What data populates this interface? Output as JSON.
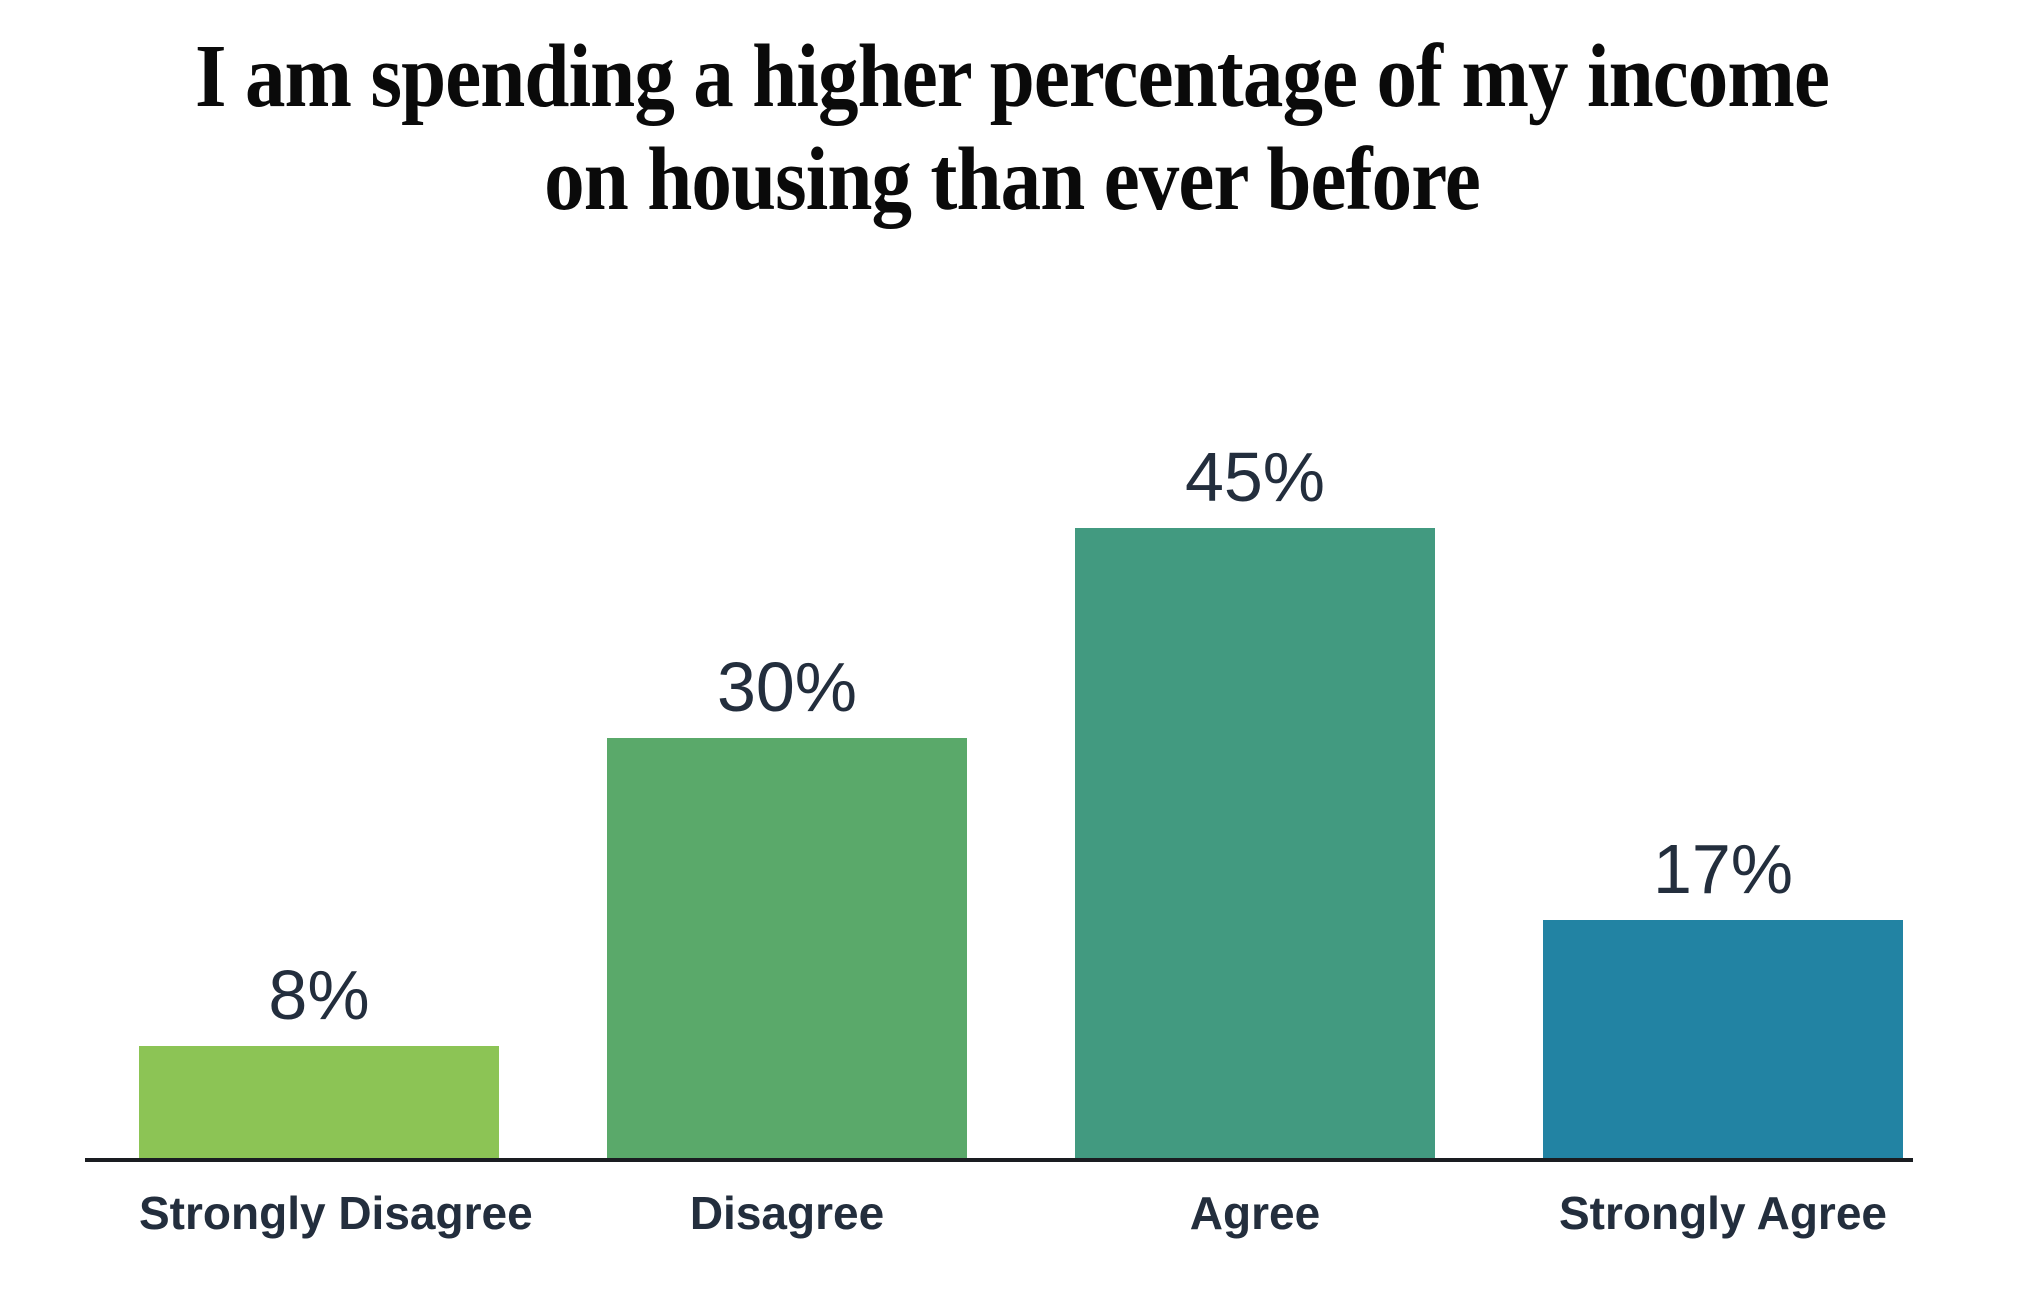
{
  "title_line1": "I am spending a higher percentage of my income",
  "title_line2": "on housing than ever before",
  "chart_data": {
    "type": "bar",
    "title": "I am spending a higher percentage of my income on housing than ever before",
    "categories": [
      "Strongly Disagree",
      "Disagree",
      "Agree",
      "Strongly Agree"
    ],
    "values": [
      8,
      30,
      45,
      17
    ],
    "value_labels": [
      "8%",
      "30%",
      "45%",
      "17%"
    ],
    "bar_colors": [
      "#8cc455",
      "#5aa96a",
      "#429a80",
      "#2283a3"
    ],
    "xlabel": "",
    "ylabel": "",
    "ylim": [
      0,
      50
    ],
    "grid": false,
    "legend": false,
    "data_label_position": "above-bar",
    "background_color": "#ffffff",
    "text_color": "#232e3d",
    "title_color": "#0a0a0a",
    "axis_line_color": "#1a1d21"
  }
}
